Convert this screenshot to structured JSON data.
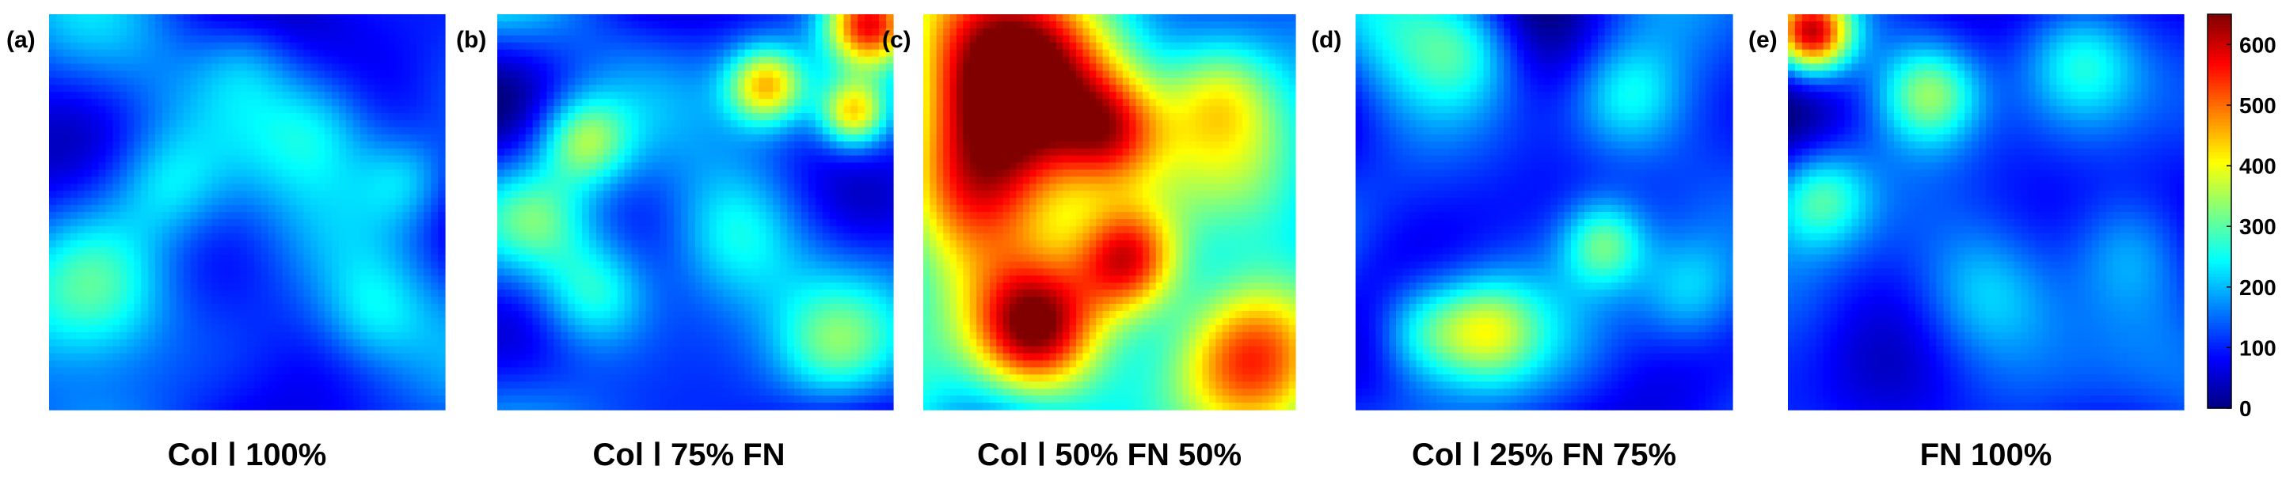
{
  "chart_data": [
    {
      "type": "heatmap",
      "panel_label": "(a)",
      "caption": "Col Ⅰ 100%",
      "title": "",
      "xlabel": "",
      "ylabel": "",
      "value_range": [
        0,
        650
      ],
      "seed": 11,
      "baseline": 165,
      "hotspots": [
        {
          "cx": 0.12,
          "cy": 0.7,
          "r": 0.14,
          "amp": 210
        },
        {
          "cx": 0.3,
          "cy": 0.44,
          "r": 0.1,
          "amp": 120
        },
        {
          "cx": 0.68,
          "cy": 0.28,
          "r": 0.11,
          "amp": 130
        },
        {
          "cx": 0.82,
          "cy": 0.76,
          "r": 0.1,
          "amp": 110
        },
        {
          "cx": 0.9,
          "cy": 0.42,
          "r": 0.08,
          "amp": 100
        },
        {
          "cx": 0.5,
          "cy": 0.12,
          "r": 0.09,
          "amp": 90
        }
      ]
    },
    {
      "type": "heatmap",
      "panel_label": "(b)",
      "caption": "Col Ⅰ 75% FN",
      "title": "",
      "xlabel": "",
      "ylabel": "",
      "value_range": [
        0,
        650
      ],
      "seed": 23,
      "baseline": 170,
      "hotspots": [
        {
          "cx": 0.68,
          "cy": 0.18,
          "r": 0.07,
          "amp": 330
        },
        {
          "cx": 0.94,
          "cy": 0.02,
          "r": 0.08,
          "amp": 470
        },
        {
          "cx": 0.9,
          "cy": 0.25,
          "r": 0.06,
          "amp": 300
        },
        {
          "cx": 0.22,
          "cy": 0.32,
          "r": 0.08,
          "amp": 220
        },
        {
          "cx": 0.24,
          "cy": 0.7,
          "r": 0.1,
          "amp": 190
        },
        {
          "cx": 0.6,
          "cy": 0.55,
          "r": 0.12,
          "amp": 150
        },
        {
          "cx": 0.1,
          "cy": 0.52,
          "r": 0.09,
          "amp": 140
        },
        {
          "cx": 0.85,
          "cy": 0.85,
          "r": 0.1,
          "amp": 120
        }
      ]
    },
    {
      "type": "heatmap",
      "panel_label": "(c)",
      "caption": "Col Ⅰ 50% FN 50%",
      "title": "",
      "xlabel": "",
      "ylabel": "",
      "value_range": [
        0,
        650
      ],
      "seed": 37,
      "baseline": 235,
      "hotspots": [
        {
          "cx": 0.25,
          "cy": 0.2,
          "r": 0.2,
          "amp": 560
        },
        {
          "cx": 0.12,
          "cy": 0.45,
          "r": 0.14,
          "amp": 260
        },
        {
          "cx": 0.5,
          "cy": 0.3,
          "r": 0.1,
          "amp": 250
        },
        {
          "cx": 0.55,
          "cy": 0.62,
          "r": 0.1,
          "amp": 400
        },
        {
          "cx": 0.3,
          "cy": 0.8,
          "r": 0.12,
          "amp": 430
        },
        {
          "cx": 0.88,
          "cy": 0.86,
          "r": 0.15,
          "amp": 460
        },
        {
          "cx": 0.8,
          "cy": 0.2,
          "r": 0.1,
          "amp": 140
        }
      ]
    },
    {
      "type": "heatmap",
      "panel_label": "(d)",
      "caption": "Col Ⅰ 25% FN 75%",
      "title": "",
      "xlabel": "",
      "ylabel": "",
      "value_range": [
        0,
        650
      ],
      "seed": 51,
      "baseline": 160,
      "hotspots": [
        {
          "cx": 0.18,
          "cy": 0.8,
          "r": 0.1,
          "amp": 230
        },
        {
          "cx": 0.35,
          "cy": 0.8,
          "r": 0.09,
          "amp": 200
        },
        {
          "cx": 0.66,
          "cy": 0.58,
          "r": 0.08,
          "amp": 220
        },
        {
          "cx": 0.3,
          "cy": 0.08,
          "r": 0.11,
          "amp": 150
        },
        {
          "cx": 0.72,
          "cy": 0.2,
          "r": 0.1,
          "amp": 130
        },
        {
          "cx": 0.88,
          "cy": 0.7,
          "r": 0.1,
          "amp": 140
        }
      ]
    },
    {
      "type": "heatmap",
      "panel_label": "(e)",
      "caption": "FN 100%",
      "title": "",
      "xlabel": "",
      "ylabel": "",
      "value_range": [
        0,
        650
      ],
      "seed": 67,
      "baseline": 150,
      "hotspots": [
        {
          "cx": 0.06,
          "cy": 0.05,
          "r": 0.07,
          "amp": 480
        },
        {
          "cx": 0.36,
          "cy": 0.2,
          "r": 0.09,
          "amp": 230
        },
        {
          "cx": 0.08,
          "cy": 0.46,
          "r": 0.09,
          "amp": 210
        },
        {
          "cx": 0.74,
          "cy": 0.12,
          "r": 0.1,
          "amp": 130
        },
        {
          "cx": 0.5,
          "cy": 0.7,
          "r": 0.12,
          "amp": 120
        },
        {
          "cx": 0.86,
          "cy": 0.6,
          "r": 0.11,
          "amp": 120
        }
      ]
    }
  ],
  "colorbar": {
    "min": 0,
    "max": 650,
    "ticks": [
      "0",
      "100",
      "200",
      "300",
      "400",
      "500",
      "600"
    ],
    "colormap": "jet"
  },
  "colors": {
    "text": "#000000",
    "background": "#ffffff"
  }
}
